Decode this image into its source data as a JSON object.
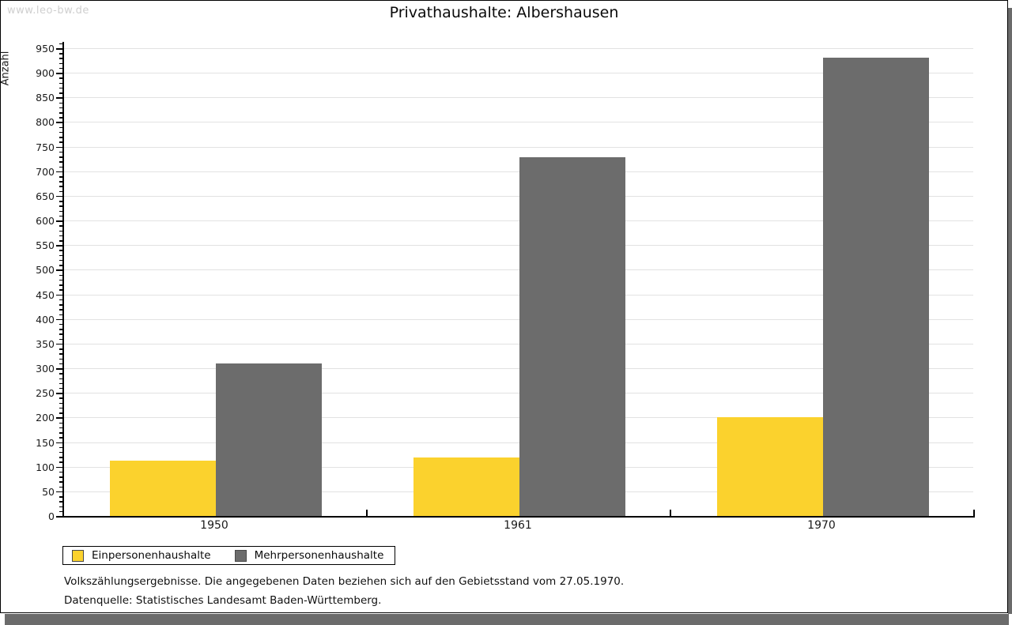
{
  "watermark": "www.leo-bw.de",
  "chart_data": {
    "type": "bar",
    "title": "Privathaushalte: Albershausen",
    "categories": [
      "1950",
      "1961",
      "1970"
    ],
    "series": [
      {
        "name": "Einpersonenhaushalte",
        "color": "#fbd22d",
        "values": [
          113,
          119,
          200
        ]
      },
      {
        "name": "Mehrpersonenhaushalte",
        "color": "#6c6c6c",
        "values": [
          309,
          729,
          930
        ]
      }
    ],
    "xlabel": "",
    "ylabel": "Anzahl",
    "ylim": [
      0,
      950
    ],
    "ytick_step": 50,
    "minor_tick_step": 10,
    "grid": true,
    "legend_position": "bottom-left"
  },
  "footnotes": [
    "Volkszählungsergebnisse. Die angegebenen Daten beziehen sich auf den Gebietsstand vom 27.05.1970.",
    "Datenquelle: Statistisches Landesamt Baden-Württemberg."
  ]
}
